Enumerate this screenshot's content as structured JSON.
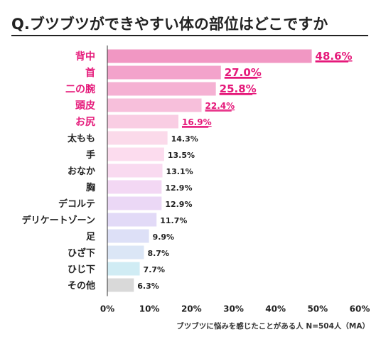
{
  "chart_data": {
    "type": "bar",
    "orientation": "horizontal",
    "title": "Q.ブツブツができやすい体の部位はどこですか",
    "categories": [
      "背中",
      "首",
      "二の腕",
      "頭皮",
      "お尻",
      "太もも",
      "手",
      "おなか",
      "胸",
      "デコルテ",
      "デリケートゾーン",
      "足",
      "ひざ下",
      "ひじ下",
      "その他"
    ],
    "values": [
      48.6,
      27.0,
      25.8,
      22.4,
      16.9,
      14.3,
      13.5,
      13.1,
      12.9,
      12.9,
      11.7,
      9.9,
      8.7,
      7.7,
      6.3
    ],
    "value_labels": [
      "48.6%",
      "27.0%",
      "25.8%",
      "22.4%",
      "16.9%",
      "14.3%",
      "13.5%",
      "13.1%",
      "12.9%",
      "12.9%",
      "11.7%",
      "9.9%",
      "8.7%",
      "7.7%",
      "6.3%"
    ],
    "highlighted_top_n": 5,
    "bar_colors": [
      "#f197c3",
      "#f3a3cb",
      "#f5b1d3",
      "#f7bfdb",
      "#f9cde3",
      "#fbdaea",
      "#fcdcee",
      "#f9daf0",
      "#f3d8f4",
      "#ebd8f6",
      "#e2daf7",
      "#dde0f7",
      "#dbe6f6",
      "#d0ecf4",
      "#d9d9d9"
    ],
    "highlight_color": "#e5197a",
    "xlim": [
      0,
      60
    ],
    "xticks": [
      "0%",
      "10%",
      "20%",
      "30%",
      "40%",
      "50%",
      "60%"
    ],
    "xlabel": "",
    "ylabel": "",
    "grid": false,
    "footnote": "ブツブツに悩みを感じたことがある人 N=504人（MA）"
  }
}
